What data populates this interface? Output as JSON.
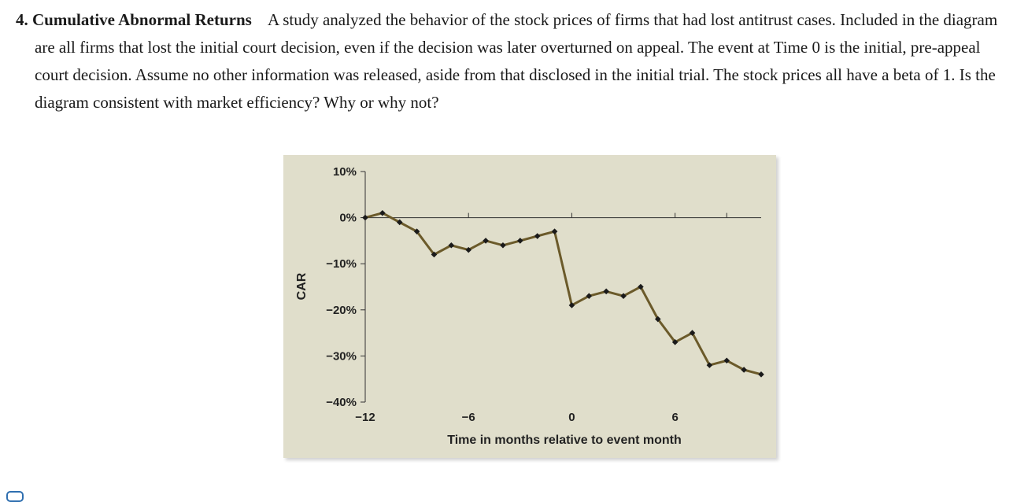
{
  "question": {
    "number": "4.",
    "title": "Cumulative Abnormal Returns",
    "body": "A study analyzed the behavior of the stock prices of firms that had lost antitrust cases. Included in the diagram are all firms that lost the initial court decision, even if the decision was later overturned on appeal. The event at Time 0 is the initial, pre-appeal court decision. Assume no other information was released, aside from that disclosed in the initial trial. The stock prices all have a beta of 1. Is the diagram consistent with market efficiency? Why or why not?"
  },
  "chart_data": {
    "type": "line",
    "title": "",
    "xlabel": "Time in months relative to event month",
    "ylabel": "CAR",
    "xlim": [
      -12,
      11
    ],
    "ylim": [
      -40,
      10
    ],
    "xticks": [
      -12,
      -6,
      0,
      6
    ],
    "xtick_labels": [
      "−12",
      "−6",
      "0",
      "6"
    ],
    "yticks": [
      10,
      0,
      -10,
      -20,
      -30,
      -40
    ],
    "ytick_labels": [
      "10%",
      "0%",
      "−10%",
      "−20%",
      "−30%",
      "−40%"
    ],
    "grid": false,
    "legend": "none",
    "line_color": "#6b5a2a",
    "marker_color": "#1a1a1a",
    "background": "#e0decb",
    "series": [
      {
        "x": [
          -12,
          -11,
          -10,
          -9,
          -8,
          -7,
          -6,
          -5,
          -4,
          -3,
          -2,
          -1,
          0,
          1,
          2,
          3,
          4,
          5,
          6,
          7,
          8,
          9,
          10,
          11
        ],
        "values": [
          0,
          1,
          -1,
          -3,
          -8,
          -6,
          -7,
          -5,
          -6,
          -5,
          -4,
          -3,
          -19,
          -17,
          -16,
          -17,
          -15,
          -22,
          -27,
          -25,
          -32,
          -31,
          -33,
          -34
        ]
      }
    ]
  },
  "footer": {
    "icon": "chat-icon"
  }
}
